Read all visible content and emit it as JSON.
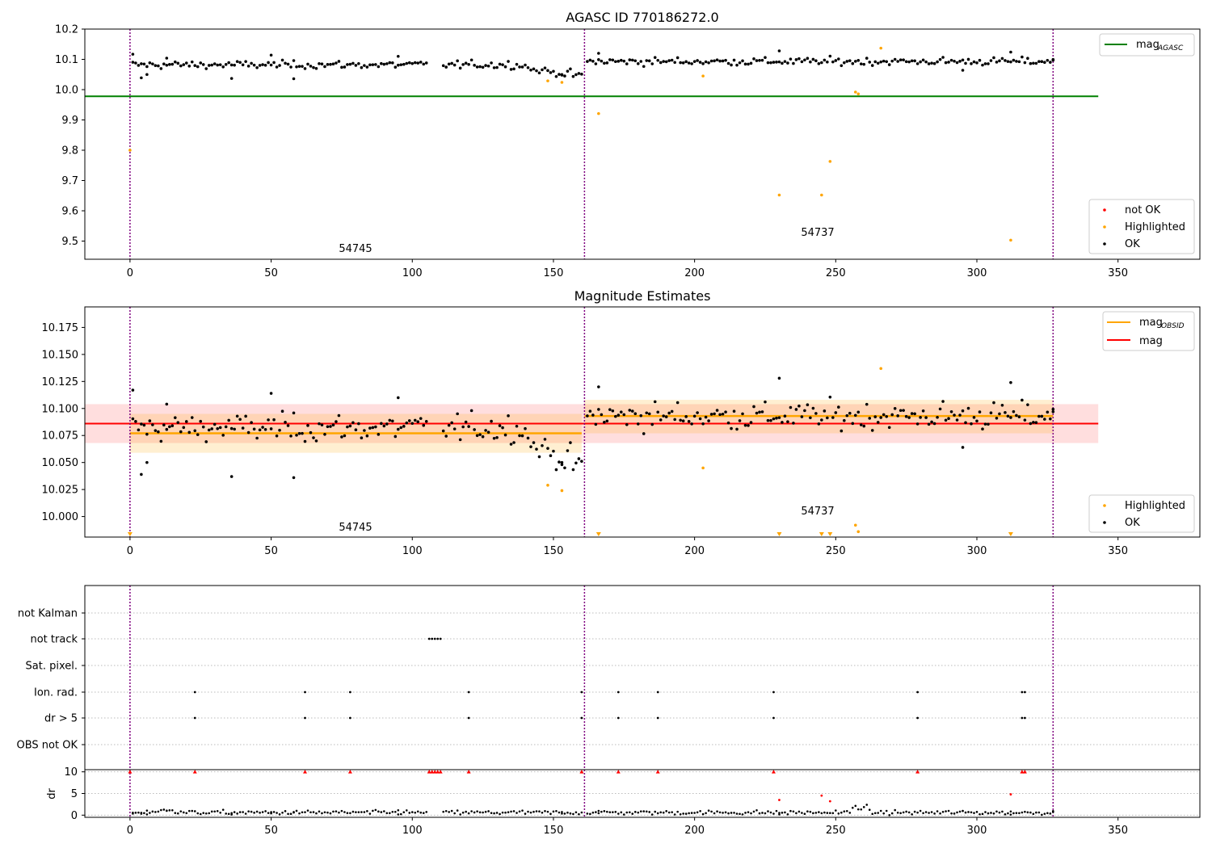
{
  "panel1": {
    "title": "AGASC ID 770186272.0",
    "ylim": [
      9.44,
      10.2
    ],
    "yticks": [
      "10.2",
      "10.1",
      "10.0",
      "9.9",
      "9.8",
      "9.7",
      "9.6",
      "9.5"
    ],
    "legend_top": {
      "mag_agasc_base": "mag",
      "mag_agasc_sub": "AGASC"
    },
    "legend_bottom": [
      "not OK",
      "Highlighted",
      "OK"
    ],
    "obsid_labels": [
      "54745",
      "54737"
    ]
  },
  "panel2": {
    "title": "Magnitude Estimates",
    "ylim": [
      9.981,
      10.194
    ],
    "yticks": [
      "10.175",
      "10.150",
      "10.125",
      "10.100",
      "10.075",
      "10.050",
      "10.025",
      "10.000"
    ],
    "legend_top": {
      "mag_obsid_base": "mag",
      "mag_obsid_sub": "OBSID",
      "mag": "mag"
    },
    "legend_bottom": [
      "Highlighted",
      "OK"
    ],
    "obsid_labels": [
      "54745",
      "54737"
    ]
  },
  "panel3": {
    "flag_labels": [
      "not Kalman",
      "not track",
      "Sat. pixel.",
      "Ion. rad.",
      "dr > 5",
      "OBS not OK"
    ],
    "dr_ylabel": "dr",
    "dr_yticks": [
      "10",
      "5",
      "0"
    ]
  },
  "xticks": [
    "0",
    "50",
    "100",
    "150",
    "200",
    "250",
    "300",
    "350"
  ],
  "colors": {
    "ok": "#000000",
    "highlighted": "#ffa500",
    "not_ok": "#ff0000",
    "agasc_line": "#008000",
    "obsid_line": "#ffa500",
    "mag_line": "#ff0000",
    "obs_boundary": "#800080"
  },
  "chart_data": {
    "type": "scatter",
    "x_range": [
      -16,
      379
    ],
    "obs_boundaries_x": [
      0,
      161,
      327
    ],
    "mag_agasc": 9.978,
    "mag": 10.086,
    "mag_band_1sigma": [
      10.068,
      10.104
    ],
    "mag_obsid": [
      {
        "obsid": "54745",
        "x_range": [
          0,
          160
        ],
        "value": 10.077,
        "band": [
          10.059,
          10.095
        ]
      },
      {
        "obsid": "54737",
        "x_range": [
          161,
          327
        ],
        "value": 10.093,
        "band": [
          10.077,
          10.108
        ]
      }
    ],
    "ok_points_sample": [
      {
        "x": 1,
        "y": 10.117
      },
      {
        "x": 4,
        "y": 10.039
      },
      {
        "x": 6,
        "y": 10.05
      },
      {
        "x": 13,
        "y": 10.104
      },
      {
        "x": 36,
        "y": 10.037
      },
      {
        "x": 50,
        "y": 10.114
      },
      {
        "x": 58,
        "y": 10.036
      },
      {
        "x": 95,
        "y": 10.11
      },
      {
        "x": 153,
        "y": 10.05
      },
      {
        "x": 166,
        "y": 10.12
      },
      {
        "x": 230,
        "y": 10.128
      },
      {
        "x": 295,
        "y": 10.064
      },
      {
        "x": 312,
        "y": 10.124
      },
      {
        "x": 327,
        "y": 10.097
      }
    ],
    "highlighted_points": [
      {
        "x": 0,
        "y": 9.8
      },
      {
        "x": 148,
        "y": 10.029
      },
      {
        "x": 153,
        "y": 10.024
      },
      {
        "x": 166,
        "y": 9.921
      },
      {
        "x": 203,
        "y": 10.045
      },
      {
        "x": 230,
        "y": 9.652
      },
      {
        "x": 245,
        "y": 9.652
      },
      {
        "x": 248,
        "y": 9.763
      },
      {
        "x": 257,
        "y": 9.992
      },
      {
        "x": 258,
        "y": 9.986
      },
      {
        "x": 266,
        "y": 10.137
      },
      {
        "x": 312,
        "y": 9.503
      }
    ],
    "flags": {
      "not_track": [
        106,
        107,
        108,
        109,
        110
      ],
      "ion_rad": [
        23,
        62,
        78,
        120,
        160,
        173,
        187,
        228,
        279,
        316,
        317
      ],
      "dr_gt_5": [
        23,
        62,
        78,
        120,
        160,
        173,
        187,
        228,
        279,
        316,
        317
      ]
    },
    "dr_ylim": [
      -0.5,
      10.5
    ],
    "dr_clipped_x": [
      0,
      23,
      62,
      78,
      106,
      107,
      108,
      109,
      110,
      120,
      160,
      173,
      187,
      228,
      279,
      316,
      317
    ],
    "dr_notok_points": [
      {
        "x": 230,
        "y": 3.5
      },
      {
        "x": 245,
        "y": 4.5
      },
      {
        "x": 248,
        "y": 3.2
      },
      {
        "x": 312,
        "y": 4.8
      }
    ]
  }
}
